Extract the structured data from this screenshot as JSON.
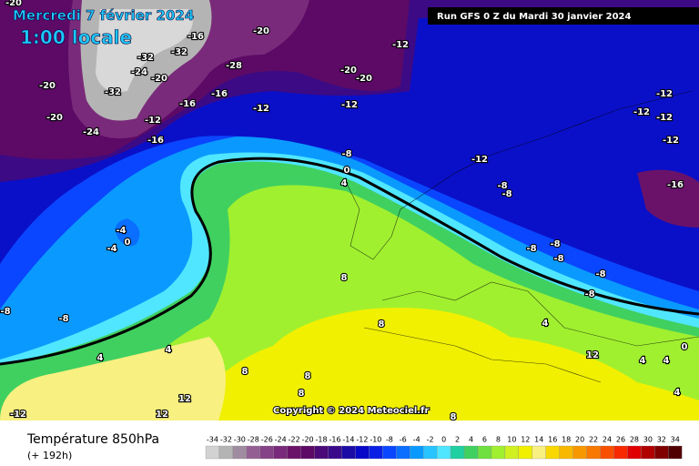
{
  "header": {
    "valid_date": "Mercredi 7 février 2024",
    "local_time": "1:00 locale",
    "run": "Run GFS 0 Z du Mardi 30 janvier 2024"
  },
  "copyright": "Copyright © 2024 Meteociel.fr",
  "footer": {
    "title": "Température 850hPa",
    "lead": "(+ 192h)"
  },
  "legend": {
    "values": [
      -34,
      -32,
      -30,
      -28,
      -26,
      -24,
      -22,
      -20,
      -18,
      -16,
      -14,
      -12,
      -10,
      -8,
      -6,
      -4,
      -2,
      0,
      2,
      4,
      6,
      8,
      10,
      12,
      14,
      16,
      18,
      20,
      22,
      24,
      26,
      28,
      30,
      32,
      34
    ],
    "colors": [
      "#d2d2d2",
      "#b4b4b4",
      "#a08ca0",
      "#946094",
      "#864286",
      "#7a2a7a",
      "#6a126a",
      "#5c0a66",
      "#4a0a78",
      "#3a0a8a",
      "#1c0ca6",
      "#0808c8",
      "#0a1ee6",
      "#0a46ff",
      "#0a6eff",
      "#0a9aff",
      "#28c4ff",
      "#50e6ff",
      "#20d0a0",
      "#40d060",
      "#70e040",
      "#a0f030",
      "#d0f020",
      "#f0f000",
      "#f8f080",
      "#f8d800",
      "#f8b800",
      "#f89800",
      "#f87800",
      "#f85000",
      "#f82800",
      "#e00000",
      "#b00000",
      "#800000",
      "#500000"
    ]
  },
  "contour_labels": [
    "-20",
    "-16",
    "-20",
    "-12",
    "-32",
    "-32",
    "-28",
    "-24",
    "-20",
    "-20",
    "-20",
    "-20",
    "-32",
    "-16",
    "-16",
    "-12",
    "-12",
    "-20",
    "-12",
    "-24",
    "-16",
    "-8",
    "0",
    "4",
    "-12",
    "-8",
    "-8",
    "-16",
    "-12",
    "-12",
    "-12",
    "-12",
    "-4",
    "0",
    "-4",
    "-8",
    "-8",
    "-8",
    "-8",
    "-8",
    "-8",
    "-8",
    "8",
    "8",
    "4",
    "4",
    "4",
    "12",
    "4",
    "4",
    "0",
    "8",
    "8",
    "8",
    "12",
    "12",
    "-12",
    "8",
    "4"
  ]
}
